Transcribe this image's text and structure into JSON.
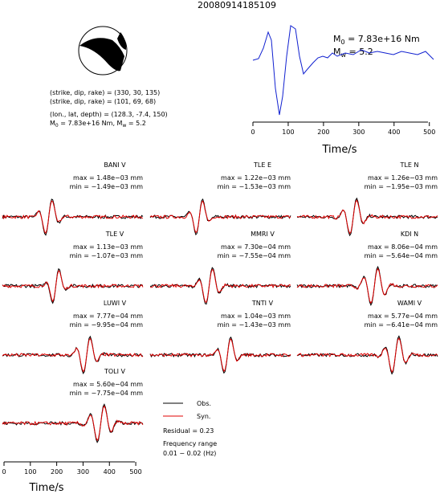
{
  "title": "20080914185109",
  "mechanism": {
    "line1": "(strike, dip, rake) = (330, 30, 135)",
    "line2": "(strike, dip, rake) = (101, 69, 68)",
    "line3": "(lon., lat, depth) = (128.3, -7.4, 150)",
    "moment": [
      "M",
      "0",
      " = 7.83e+16 Nm, M",
      "w",
      " = 5.2"
    ]
  },
  "stf": {
    "m0": [
      "M",
      "0",
      " = 7.83e+16 Nm"
    ],
    "mw": [
      "M",
      "w",
      " = 5.2"
    ],
    "xlabel": "Time/s",
    "xlim": [
      0,
      512
    ],
    "xticks": [
      0,
      100,
      200,
      300,
      400,
      500
    ]
  },
  "stations": [
    {
      "name": "BANI V",
      "max": "max = 1.48e−03 mm",
      "min": "min = −1.49e−03 mm"
    },
    {
      "name": "TLE E",
      "max": "max = 1.22e−03 mm",
      "min": "min = −1.53e−03 mm"
    },
    {
      "name": "TLE N",
      "max": "max = 1.26e−03 mm",
      "min": "min = −1.95e−03 mm"
    },
    {
      "name": "TLE V",
      "max": "max = 1.13e−03 mm",
      "min": "min = −1.07e−03 mm"
    },
    {
      "name": "MMRI V",
      "max": "max = 7.30e−04 mm",
      "min": "min = −7.55e−04 mm"
    },
    {
      "name": "KDI N",
      "max": "max = 8.06e−04 mm",
      "min": "min = −5.64e−04 mm"
    },
    {
      "name": "LUWI V",
      "max": "max = 7.77e−04 mm",
      "min": "min = −9.95e−04 mm"
    },
    {
      "name": "TNTI V",
      "max": "max = 1.04e−03 mm",
      "min": "min = −1.43e−03 mm"
    },
    {
      "name": "WAMI V",
      "max": "max = 5.77e−04 mm",
      "min": "min = −6.41e−04 mm"
    },
    {
      "name": "TOLI V",
      "max": "max = 5.60e−04 mm",
      "min": "min = −7.75e−04 mm"
    }
  ],
  "legend": {
    "obs": "Obs.",
    "syn": "Syn."
  },
  "residual": "Residual = 0.23",
  "freq_label": "Frequency range",
  "freq_value": "0.01 − 0.02 (Hz)",
  "bottom_axis": {
    "xlabel": "Time/s",
    "xlim": [
      0,
      512
    ],
    "xticks": [
      0,
      100,
      200,
      300,
      400,
      500
    ]
  }
}
